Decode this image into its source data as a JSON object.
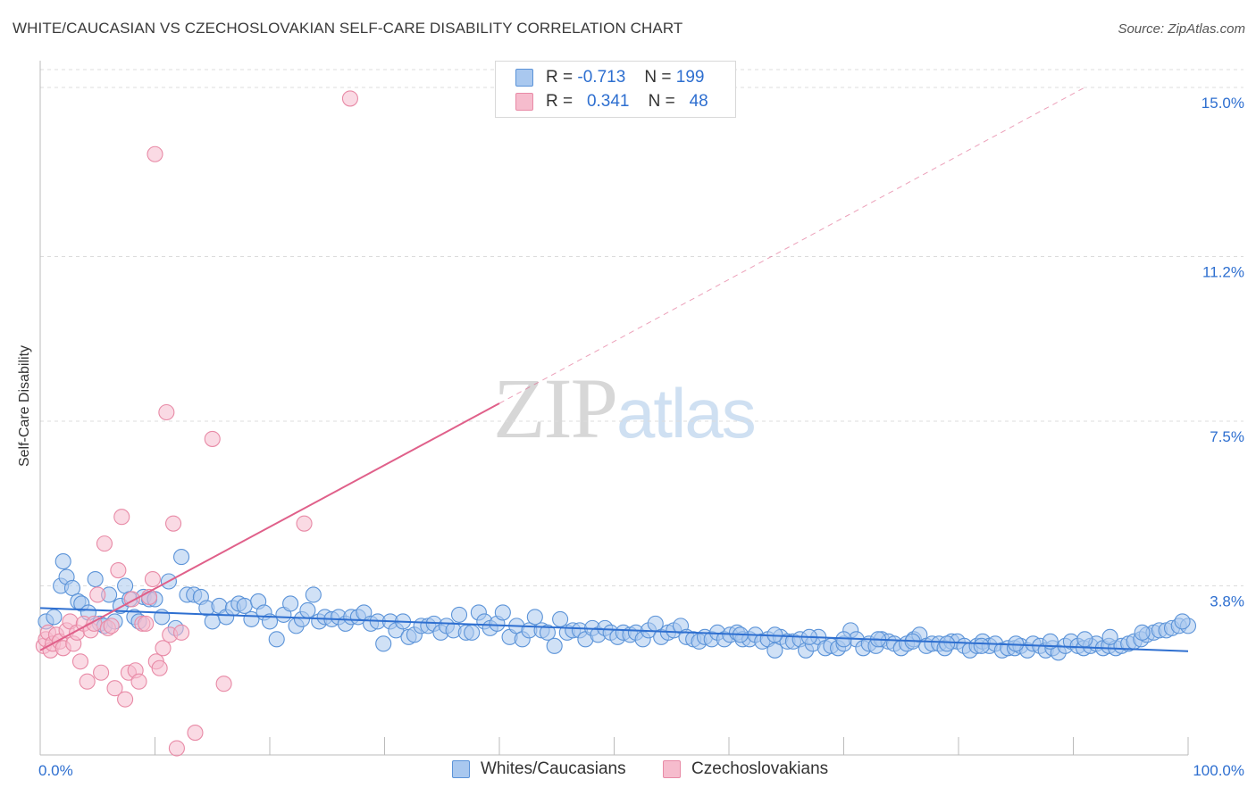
{
  "title": "WHITE/CAUCASIAN VS CZECHOSLOVAKIAN SELF-CARE DISABILITY CORRELATION CHART",
  "source": "Source: ZipAtlas.com",
  "watermark": {
    "zip": "ZIP",
    "atlas": "atlas"
  },
  "colors": {
    "blue_fill": "#a9c8ef",
    "blue_stroke": "#5b93d8",
    "blue_line": "#2e6fd0",
    "pink_fill": "#f6bccd",
    "pink_stroke": "#e88aa6",
    "pink_line": "#e0608a",
    "tick_label": "#2e6fd0",
    "grid": "#dcdcdc"
  },
  "legend_top": [
    {
      "r_label": "R =",
      "r_value": "-0.713",
      "n_label": "N =",
      "n_value": "199",
      "color": "blue"
    },
    {
      "r_label": "R =",
      "r_value": "0.341",
      "n_label": "N =",
      "n_value": "48",
      "color": "pink"
    }
  ],
  "legend_bottom": [
    {
      "label": "Whites/Caucasians",
      "color": "blue"
    },
    {
      "label": "Czechoslovakians",
      "color": "pink"
    }
  ],
  "chart_data": {
    "type": "scatter",
    "title": "WHITE/CAUCASIAN VS CZECHOSLOVAKIAN SELF-CARE DISABILITY CORRELATION CHART",
    "xlabel": "",
    "ylabel": "Self-Care Disability",
    "xlim": [
      0,
      100
    ],
    "ylim": [
      0,
      15.4
    ],
    "x_tick_labels": [
      "0.0%",
      "100.0%"
    ],
    "y_ticks": [
      3.8,
      7.5,
      11.2,
      15.0
    ],
    "y_tick_labels": [
      "3.8%",
      "7.5%",
      "11.2%",
      "15.0%"
    ],
    "grid": true,
    "legend_placement": "top-center",
    "series": [
      {
        "name": "Whites/Caucasians",
        "R": -0.713,
        "N": 199,
        "trend": {
          "x": [
            0,
            100
          ],
          "y": [
            3.3,
            2.33
          ]
        },
        "points": [
          [
            0.5,
            3.0
          ],
          [
            1.2,
            3.1
          ],
          [
            1.8,
            3.8
          ],
          [
            2.0,
            4.35
          ],
          [
            2.3,
            4.0
          ],
          [
            2.8,
            3.75
          ],
          [
            3.3,
            3.45
          ],
          [
            3.6,
            3.4
          ],
          [
            4.2,
            3.2
          ],
          [
            4.8,
            3.95
          ],
          [
            5.2,
            2.95
          ],
          [
            5.6,
            2.9
          ],
          [
            6.0,
            3.6
          ],
          [
            6.5,
            3.0
          ],
          [
            7.0,
            3.35
          ],
          [
            7.4,
            3.8
          ],
          [
            7.8,
            3.5
          ],
          [
            8.2,
            3.1
          ],
          [
            8.6,
            3.0
          ],
          [
            9.0,
            3.55
          ],
          [
            9.5,
            3.5
          ],
          [
            10.0,
            3.5
          ],
          [
            10.6,
            3.1
          ],
          [
            11.2,
            3.9
          ],
          [
            11.8,
            2.85
          ],
          [
            12.3,
            4.45
          ],
          [
            12.8,
            3.6
          ],
          [
            13.4,
            3.6
          ],
          [
            14.0,
            3.55
          ],
          [
            14.5,
            3.3
          ],
          [
            15.0,
            3.0
          ],
          [
            15.6,
            3.35
          ],
          [
            16.2,
            3.1
          ],
          [
            16.8,
            3.3
          ],
          [
            17.3,
            3.4
          ],
          [
            17.8,
            3.35
          ],
          [
            18.4,
            3.05
          ],
          [
            19.0,
            3.45
          ],
          [
            19.5,
            3.2
          ],
          [
            20.0,
            3.0
          ],
          [
            20.6,
            2.6
          ],
          [
            21.2,
            3.15
          ],
          [
            21.8,
            3.4
          ],
          [
            22.3,
            2.9
          ],
          [
            22.8,
            3.05
          ],
          [
            23.3,
            3.25
          ],
          [
            23.8,
            3.6
          ],
          [
            24.3,
            3.0
          ],
          [
            24.8,
            3.1
          ],
          [
            25.4,
            3.05
          ],
          [
            26.0,
            3.1
          ],
          [
            26.6,
            2.95
          ],
          [
            27.1,
            3.1
          ],
          [
            27.7,
            3.1
          ],
          [
            28.2,
            3.2
          ],
          [
            28.8,
            2.95
          ],
          [
            29.4,
            3.0
          ],
          [
            29.9,
            2.5
          ],
          [
            30.5,
            3.0
          ],
          [
            31.0,
            2.8
          ],
          [
            31.6,
            3.0
          ],
          [
            32.1,
            2.65
          ],
          [
            32.6,
            2.7
          ],
          [
            33.2,
            2.9
          ],
          [
            33.8,
            2.9
          ],
          [
            34.3,
            2.95
          ],
          [
            34.9,
            2.75
          ],
          [
            35.4,
            2.9
          ],
          [
            36.0,
            2.8
          ],
          [
            36.5,
            3.15
          ],
          [
            37.1,
            2.75
          ],
          [
            37.6,
            2.75
          ],
          [
            38.2,
            3.2
          ],
          [
            38.7,
            3.0
          ],
          [
            39.2,
            2.85
          ],
          [
            39.8,
            2.95
          ],
          [
            40.3,
            3.2
          ],
          [
            40.9,
            2.65
          ],
          [
            41.5,
            2.9
          ],
          [
            42.0,
            2.6
          ],
          [
            42.6,
            2.8
          ],
          [
            43.1,
            3.1
          ],
          [
            43.7,
            2.8
          ],
          [
            44.2,
            2.75
          ],
          [
            44.8,
            2.45
          ],
          [
            45.3,
            3.05
          ],
          [
            45.9,
            2.75
          ],
          [
            46.4,
            2.8
          ],
          [
            47.0,
            2.8
          ],
          [
            47.5,
            2.6
          ],
          [
            48.1,
            2.85
          ],
          [
            48.6,
            2.7
          ],
          [
            49.2,
            2.85
          ],
          [
            49.7,
            2.75
          ],
          [
            50.3,
            2.65
          ],
          [
            50.8,
            2.75
          ],
          [
            51.4,
            2.7
          ],
          [
            51.9,
            2.75
          ],
          [
            52.5,
            2.6
          ],
          [
            53.0,
            2.8
          ],
          [
            53.6,
            2.95
          ],
          [
            54.1,
            2.65
          ],
          [
            54.7,
            2.75
          ],
          [
            55.2,
            2.8
          ],
          [
            55.8,
            2.9
          ],
          [
            56.3,
            2.65
          ],
          [
            56.9,
            2.6
          ],
          [
            57.4,
            2.55
          ],
          [
            57.9,
            2.65
          ],
          [
            58.5,
            2.6
          ],
          [
            59.0,
            2.75
          ],
          [
            59.6,
            2.6
          ],
          [
            60.1,
            2.7
          ],
          [
            60.7,
            2.75
          ],
          [
            61.2,
            2.6
          ],
          [
            61.8,
            2.6
          ],
          [
            62.3,
            2.7
          ],
          [
            62.9,
            2.55
          ],
          [
            63.4,
            2.6
          ],
          [
            64.0,
            2.35
          ],
          [
            64.5,
            2.65
          ],
          [
            65.1,
            2.55
          ],
          [
            65.6,
            2.55
          ],
          [
            66.2,
            2.6
          ],
          [
            66.7,
            2.35
          ],
          [
            67.3,
            2.5
          ],
          [
            67.8,
            2.65
          ],
          [
            68.4,
            2.4
          ],
          [
            68.9,
            2.45
          ],
          [
            69.5,
            2.4
          ],
          [
            70.0,
            2.5
          ],
          [
            70.6,
            2.8
          ],
          [
            71.1,
            2.6
          ],
          [
            71.7,
            2.4
          ],
          [
            72.2,
            2.5
          ],
          [
            72.8,
            2.45
          ],
          [
            73.3,
            2.6
          ],
          [
            73.9,
            2.55
          ],
          [
            74.4,
            2.5
          ],
          [
            75.0,
            2.4
          ],
          [
            75.5,
            2.5
          ],
          [
            76.1,
            2.6
          ],
          [
            76.6,
            2.7
          ],
          [
            77.2,
            2.45
          ],
          [
            77.7,
            2.5
          ],
          [
            78.3,
            2.5
          ],
          [
            78.8,
            2.4
          ],
          [
            79.4,
            2.55
          ],
          [
            79.9,
            2.55
          ],
          [
            80.5,
            2.45
          ],
          [
            81.0,
            2.35
          ],
          [
            81.6,
            2.45
          ],
          [
            82.1,
            2.55
          ],
          [
            82.7,
            2.45
          ],
          [
            83.2,
            2.5
          ],
          [
            83.8,
            2.35
          ],
          [
            84.3,
            2.4
          ],
          [
            84.9,
            2.4
          ],
          [
            85.4,
            2.45
          ],
          [
            86.0,
            2.35
          ],
          [
            86.5,
            2.5
          ],
          [
            87.1,
            2.45
          ],
          [
            87.6,
            2.35
          ],
          [
            88.2,
            2.4
          ],
          [
            88.7,
            2.3
          ],
          [
            89.3,
            2.45
          ],
          [
            89.8,
            2.55
          ],
          [
            90.4,
            2.45
          ],
          [
            90.9,
            2.4
          ],
          [
            91.5,
            2.45
          ],
          [
            92.0,
            2.5
          ],
          [
            92.6,
            2.4
          ],
          [
            93.1,
            2.45
          ],
          [
            93.7,
            2.4
          ],
          [
            94.2,
            2.45
          ],
          [
            94.8,
            2.5
          ],
          [
            95.3,
            2.55
          ],
          [
            95.9,
            2.6
          ],
          [
            96.4,
            2.7
          ],
          [
            97.0,
            2.75
          ],
          [
            97.5,
            2.8
          ],
          [
            98.1,
            2.8
          ],
          [
            98.6,
            2.85
          ],
          [
            99.2,
            2.9
          ],
          [
            100.0,
            2.9
          ],
          [
            99.5,
            3.0
          ],
          [
            96.0,
            2.75
          ],
          [
            93.2,
            2.65
          ],
          [
            91.0,
            2.6
          ],
          [
            88.0,
            2.55
          ],
          [
            85.0,
            2.5
          ],
          [
            82.0,
            2.45
          ],
          [
            79.0,
            2.5
          ],
          [
            76.0,
            2.55
          ],
          [
            73.0,
            2.6
          ],
          [
            70.0,
            2.6
          ],
          [
            67.0,
            2.65
          ],
          [
            64.0,
            2.7
          ],
          [
            61.0,
            2.7
          ]
        ]
      },
      {
        "name": "Czechoslovakians",
        "R": 0.341,
        "N": 48,
        "trend": {
          "x": [
            0,
            40
          ],
          "y": [
            2.35,
            7.9
          ]
        },
        "trend_extension": {
          "x": [
            40,
            91
          ],
          "y": [
            7.9,
            15.0
          ]
        },
        "points": [
          [
            0.3,
            2.45
          ],
          [
            0.5,
            2.6
          ],
          [
            0.7,
            2.75
          ],
          [
            0.9,
            2.35
          ],
          [
            1.1,
            2.5
          ],
          [
            1.4,
            2.7
          ],
          [
            1.7,
            2.55
          ],
          [
            2.0,
            2.4
          ],
          [
            2.3,
            2.8
          ],
          [
            2.6,
            3.0
          ],
          [
            2.9,
            2.5
          ],
          [
            3.2,
            2.75
          ],
          [
            3.5,
            2.1
          ],
          [
            3.8,
            2.95
          ],
          [
            4.1,
            1.65
          ],
          [
            4.4,
            2.8
          ],
          [
            4.7,
            2.95
          ],
          [
            5.0,
            3.6
          ],
          [
            5.3,
            1.85
          ],
          [
            5.6,
            4.75
          ],
          [
            5.9,
            2.85
          ],
          [
            6.2,
            2.9
          ],
          [
            6.5,
            1.5
          ],
          [
            6.8,
            4.15
          ],
          [
            7.1,
            5.35
          ],
          [
            7.4,
            1.25
          ],
          [
            7.7,
            1.85
          ],
          [
            8.0,
            3.5
          ],
          [
            8.3,
            1.9
          ],
          [
            8.6,
            1.65
          ],
          [
            8.9,
            2.95
          ],
          [
            9.2,
            2.95
          ],
          [
            9.5,
            3.55
          ],
          [
            9.8,
            3.95
          ],
          [
            10.1,
            2.1
          ],
          [
            10.4,
            1.95
          ],
          [
            10.7,
            2.4
          ],
          [
            11.0,
            7.7
          ],
          [
            11.3,
            2.7
          ],
          [
            11.6,
            5.2
          ],
          [
            11.9,
            0.15
          ],
          [
            12.3,
            2.75
          ],
          [
            13.5,
            0.5
          ],
          [
            15.0,
            7.1
          ],
          [
            16.0,
            1.6
          ],
          [
            23.0,
            5.2
          ],
          [
            27.0,
            14.75
          ],
          [
            10.0,
            13.5
          ]
        ]
      }
    ]
  }
}
